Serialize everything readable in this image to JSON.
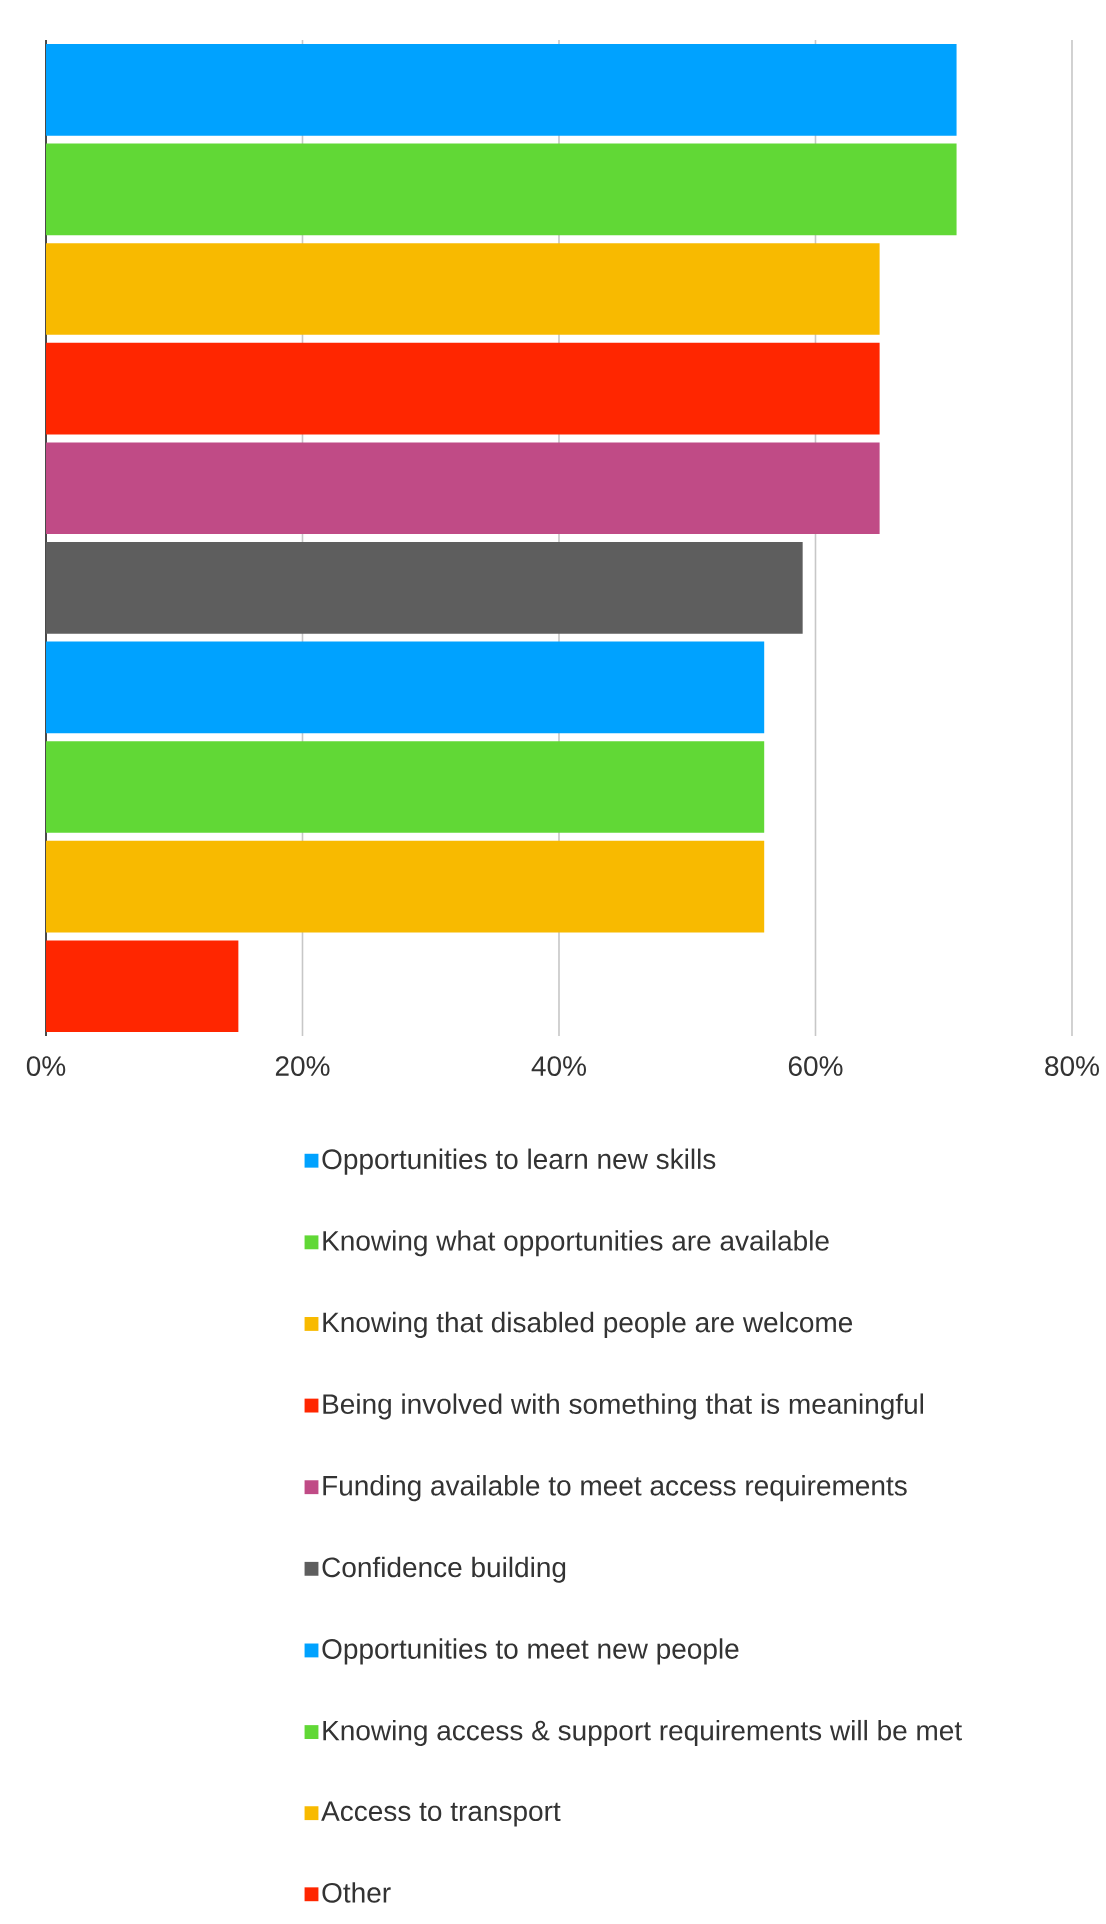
{
  "chart_data": {
    "type": "bar",
    "orientation": "horizontal",
    "categories": [
      null,
      null,
      null,
      null,
      null,
      null,
      null,
      null,
      null,
      null
    ],
    "series": [
      {
        "name": "Opportunities to learn new skills",
        "color": "#00a2ff",
        "values": [
          71,
          null,
          null,
          null,
          null,
          null,
          null,
          null,
          null,
          null
        ]
      },
      {
        "name": "Knowing what opportunities are available",
        "color": "#61d836",
        "values": [
          null,
          71,
          null,
          null,
          null,
          null,
          null,
          null,
          null,
          null
        ]
      },
      {
        "name": "Knowing that disabled people are welcome",
        "color": "#f8ba00",
        "values": [
          null,
          null,
          65,
          null,
          null,
          null,
          null,
          null,
          null,
          null
        ]
      },
      {
        "name": "Being involved with something that is meaningful",
        "color": "#ff2600",
        "values": [
          null,
          null,
          null,
          65,
          null,
          null,
          null,
          null,
          null,
          null
        ]
      },
      {
        "name": "Funding available to meet access requirements",
        "color": "#c04b86",
        "values": [
          null,
          null,
          null,
          null,
          65,
          null,
          null,
          null,
          null,
          null
        ]
      },
      {
        "name": "Confidence building",
        "color": "#5e5e5e",
        "values": [
          null,
          null,
          null,
          null,
          null,
          59,
          null,
          null,
          null,
          null
        ]
      },
      {
        "name": "Opportunities to meet new people",
        "color": "#00a2ff",
        "values": [
          null,
          null,
          null,
          null,
          null,
          null,
          56,
          null,
          null,
          null
        ]
      },
      {
        "name": "Knowing access & support requirements will be met",
        "color": "#61d836",
        "values": [
          null,
          null,
          null,
          null,
          null,
          null,
          null,
          56,
          null,
          null
        ]
      },
      {
        "name": "Access to transport",
        "color": "#f8ba00",
        "values": [
          null,
          null,
          null,
          null,
          null,
          null,
          null,
          null,
          56,
          null
        ]
      },
      {
        "name": "Other",
        "color": "#ff2600",
        "values": [
          null,
          null,
          null,
          null,
          null,
          null,
          null,
          null,
          null,
          15
        ]
      }
    ],
    "xlim": [
      0,
      80
    ],
    "xticks": [
      {
        "value": 0,
        "label": "0%"
      },
      {
        "value": 20,
        "label": "20%"
      },
      {
        "value": 40,
        "label": "40%"
      },
      {
        "value": 60,
        "label": "60%"
      },
      {
        "value": 80,
        "label": "80%"
      }
    ],
    "grid": "x",
    "legend": "bottom"
  }
}
